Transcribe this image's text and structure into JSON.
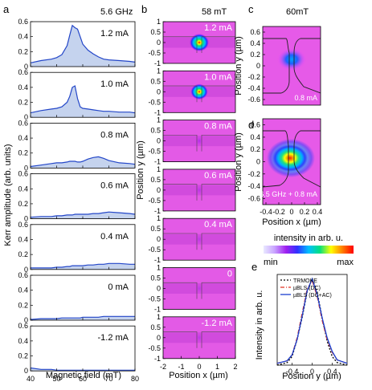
{
  "panel_labels": [
    "a",
    "b",
    "c",
    "d",
    "e"
  ],
  "panel_a": {
    "header": "5.6 GHz",
    "ylabel": "Kerr amplitude (arb. units)",
    "xlabel": "Magnetic field (mT)",
    "x_ticks": [
      "40",
      "50",
      "60",
      "70",
      "80"
    ],
    "y_ticks": [
      "0",
      "0.2",
      "0.4",
      "0.6"
    ]
  },
  "panel_b": {
    "header": "58 mT",
    "ylabel": "Position y (µm)",
    "xlabel": "Position x (µm)",
    "x_ticks": [
      "-2",
      "-1",
      "0",
      "1",
      "2"
    ],
    "y_ticks": [
      "-1",
      "-0.5",
      "0",
      "0.5",
      "1"
    ]
  },
  "panel_c": {
    "header": "60mT",
    "ylabel": "Position y (µm)",
    "annotation": "0.8 mA",
    "y_ticks": [
      "-0.6",
      "-0.4",
      "-0.2",
      "0",
      "0.2",
      "0.4",
      "0.6"
    ]
  },
  "panel_d": {
    "ylabel": "Position y (µm)",
    "xlabel": "Position x (µm)",
    "annotation": "6.5 GHz + 0.8 mA",
    "x_ticks": [
      "-0.4",
      "-0.2",
      "0",
      "0.2",
      "0.4"
    ],
    "y_ticks": [
      "-0.6",
      "-0.4",
      "-0.2",
      "0",
      "0.2",
      "0.4",
      "0.6"
    ]
  },
  "colorbar": {
    "title": "intensity in arb. u.",
    "min_label": "min",
    "max_label": "max",
    "colors": [
      "#e9e9ff",
      "#c8a2ff",
      "#a020f0",
      "#3030ff",
      "#00bfff",
      "#00e080",
      "#ffff00",
      "#ff8000",
      "#ff0000"
    ]
  },
  "panel_e": {
    "ylabel": "Intensity in arb. u.",
    "xlabel": "Position  y (µm)",
    "x_ticks": [
      "-0.4",
      "0",
      "0.4"
    ],
    "legend": [
      {
        "label": "TRMOKE",
        "color": "#000000",
        "dash": "2,2"
      },
      {
        "label": "µBLS (DC)",
        "color": "#e03020",
        "dash": "5,2,1,2"
      },
      {
        "label": "µBLS (DC+AC)",
        "color": "#1a3fd0",
        "dash": ""
      }
    ]
  },
  "chart_data": [
    {
      "type": "area",
      "title": "5.6 GHz",
      "xlabel": "Magnetic field (mT)",
      "ylabel": "Kerr amplitude (arb. units)",
      "xlim": [
        40,
        80
      ],
      "ylim": [
        0,
        0.6
      ],
      "fill_color": "#c5d3ee",
      "line_color": "#2346c8",
      "x": [
        40,
        44,
        48,
        50,
        52,
        54,
        55,
        56,
        57,
        58,
        59,
        60,
        62,
        64,
        66,
        68,
        70,
        74,
        78,
        80
      ],
      "series": [
        {
          "name": "1.2 mA",
          "values": [
            0.05,
            0.08,
            0.1,
            0.12,
            0.16,
            0.28,
            0.42,
            0.55,
            0.52,
            0.5,
            0.4,
            0.3,
            0.22,
            0.17,
            0.13,
            0.1,
            0.09,
            0.08,
            0.07,
            0.06
          ]
        },
        {
          "name": "1.0 mA",
          "values": [
            0.06,
            0.09,
            0.11,
            0.12,
            0.14,
            0.2,
            0.28,
            0.4,
            0.42,
            0.25,
            0.14,
            0.12,
            0.11,
            0.1,
            0.09,
            0.08,
            0.08,
            0.07,
            0.07,
            0.06
          ]
        },
        {
          "name": "0.8 mA",
          "values": [
            0.02,
            0.04,
            0.06,
            0.07,
            0.07,
            0.08,
            0.09,
            0.09,
            0.09,
            0.08,
            0.08,
            0.09,
            0.12,
            0.14,
            0.15,
            0.13,
            0.1,
            0.07,
            0.06,
            0.05
          ]
        },
        {
          "name": "0.6 mA",
          "values": [
            0.02,
            0.03,
            0.03,
            0.04,
            0.04,
            0.05,
            0.05,
            0.05,
            0.06,
            0.06,
            0.06,
            0.06,
            0.06,
            0.07,
            0.07,
            0.08,
            0.09,
            0.08,
            0.07,
            0.06
          ]
        },
        {
          "name": "0.4 mA",
          "values": [
            0.02,
            0.02,
            0.02,
            0.03,
            0.03,
            0.04,
            0.04,
            0.05,
            0.05,
            0.05,
            0.05,
            0.05,
            0.06,
            0.06,
            0.07,
            0.07,
            0.08,
            0.08,
            0.07,
            0.07
          ]
        },
        {
          "name": "0 mA",
          "values": [
            0.01,
            0.02,
            0.02,
            0.02,
            0.03,
            0.03,
            0.03,
            0.03,
            0.03,
            0.03,
            0.03,
            0.04,
            0.04,
            0.04,
            0.04,
            0.05,
            0.05,
            0.05,
            0.05,
            0.05
          ]
        },
        {
          "name": "-1.2 mA",
          "values": [
            0.04,
            0.02,
            0.02,
            0.01,
            0.01,
            0.01,
            0.01,
            0.01,
            0.01,
            0.01,
            0.01,
            0.01,
            0.01,
            0.01,
            0.01,
            0.01,
            0.01,
            0.01,
            0.01,
            0.01
          ]
        }
      ]
    },
    {
      "type": "heatmap",
      "title": "58 mT",
      "xlabel": "Position x (µm)",
      "ylabel": "Position y (µm)",
      "xlim": [
        -2,
        2
      ],
      "ylim": [
        -1,
        1
      ],
      "maps": [
        {
          "label": "1.2 mA",
          "spot_intensity": 1.0
        },
        {
          "label": "1.0 mA",
          "spot_intensity": 0.85
        },
        {
          "label": "0.8 mA",
          "spot_intensity": 0.1
        },
        {
          "label": "0.6 mA",
          "spot_intensity": 0.05
        },
        {
          "label": "0.4 mA",
          "spot_intensity": 0.03
        },
        {
          "label": "0",
          "spot_intensity": 0.02
        },
        {
          "label": "-1.2 mA",
          "spot_intensity": 0.02
        }
      ]
    },
    {
      "type": "line",
      "xlabel": "Position  y (µm)",
      "ylabel": "Intensity in arb. u.",
      "xlim": [
        -0.7,
        0.7
      ],
      "ylim": [
        0,
        1.05
      ],
      "x": [
        -0.7,
        -0.5,
        -0.4,
        -0.3,
        -0.2,
        -0.1,
        0,
        0.1,
        0.2,
        0.3,
        0.4,
        0.5,
        0.7
      ],
      "series": [
        {
          "name": "TRMOKE",
          "values": [
            0.0,
            0.03,
            0.1,
            0.3,
            0.55,
            0.85,
            1.0,
            0.85,
            0.55,
            0.28,
            0.1,
            0.03,
            0.0
          ]
        },
        {
          "name": "µBLS (DC)",
          "values": [
            0.02,
            0.05,
            0.12,
            0.32,
            0.6,
            0.88,
            0.98,
            0.8,
            0.52,
            0.3,
            0.15,
            0.06,
            0.02
          ]
        },
        {
          "name": "µBLS (DC+AC)",
          "values": [
            0.02,
            0.05,
            0.12,
            0.3,
            0.57,
            0.86,
            1.0,
            0.82,
            0.55,
            0.32,
            0.16,
            0.06,
            0.02
          ]
        }
      ]
    }
  ]
}
